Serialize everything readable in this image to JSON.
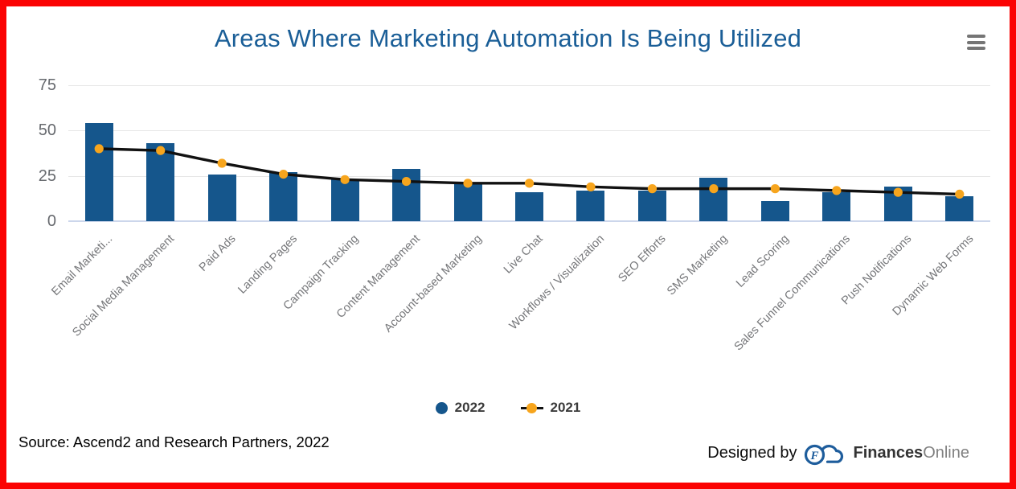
{
  "header": {
    "title": "Areas Where Marketing Automation Is Being Utilized"
  },
  "chart_data": {
    "type": "bar",
    "title": "Areas Where Marketing Automation Is Being Utilized",
    "categories": [
      "Email Marketi...",
      "Social Media Management",
      "Paid Ads",
      "Landing Pages",
      "Campaign Tracking",
      "Content Management",
      "Account-based Marketing",
      "Live Chat",
      "Workflows / Visualization",
      "SEO Efforts",
      "SMS Marketing",
      "Lead Scoring",
      "Sales Funnel Communications",
      "Push Notifications",
      "Dynamic Web Forms"
    ],
    "series": [
      {
        "name": "2022",
        "type": "bar",
        "color": "#15568c",
        "values": [
          54,
          43,
          26,
          27,
          23,
          29,
          21,
          16,
          17,
          17,
          24,
          11,
          16,
          19,
          14
        ]
      },
      {
        "name": "2021",
        "type": "line",
        "color": "#f7a51d",
        "line_color": "#111111",
        "values": [
          40,
          39,
          32,
          26,
          23,
          22,
          21,
          21,
          19,
          18,
          18,
          18,
          17,
          16,
          15
        ]
      }
    ],
    "xlabel": "",
    "ylabel": "",
    "yticks": [
      0,
      25,
      50,
      75
    ],
    "ylim": [
      0,
      80
    ],
    "grid": true,
    "legend_position": "bottom"
  },
  "colors": {
    "title": "#1a5e97",
    "bar": "#15568c",
    "marker": "#f7a51d",
    "line": "#111111",
    "border": "#fb0303",
    "grid": "#e6e6e6",
    "axis_line": "#ccd6eb",
    "tick_label": "#66696e",
    "category_label": "#76777a",
    "logo_blue": "#1e5d9c"
  },
  "footer": {
    "source": "Source: Ascend2 and Research Partners, 2022",
    "designed_by_label": "Designed by",
    "brand_bold": "Finances",
    "brand_light": "Online",
    "logo_letter": "F"
  }
}
